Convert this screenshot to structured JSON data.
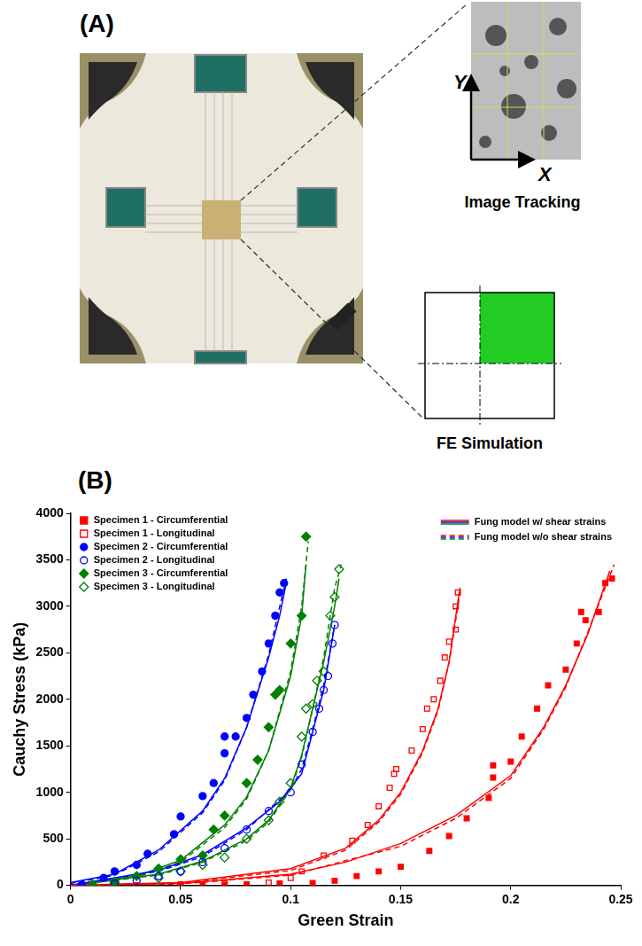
{
  "panel_a": {
    "label": "(A)",
    "image_tracking": {
      "title": "Image Tracking",
      "x_label": "X",
      "y_label": "Y"
    },
    "fe_simulation": {
      "title": "FE Simulation"
    }
  },
  "panel_b": {
    "label": "(B)"
  },
  "chart_data": {
    "type": "scatter",
    "x_label": "Green Strain",
    "y_label": "Cauchy Stress (kPa)",
    "xlim": [
      0,
      0.25
    ],
    "xticks": [
      0,
      0.05,
      0.1,
      0.15,
      0.2,
      0.25
    ],
    "ylim": [
      0,
      4000
    ],
    "yticks": [
      0,
      500,
      1000,
      1500,
      2000,
      2500,
      3000,
      3500,
      4000
    ],
    "grid": false,
    "legend": "upper left",
    "series": [
      {
        "name": "Specimen 1 - Circumferential",
        "type": "scatter",
        "marker": "filled_square",
        "color": "#ff0000",
        "x": [
          0.05,
          0.06,
          0.07,
          0.08,
          0.095,
          0.11,
          0.12,
          0.13,
          0.14,
          0.15,
          0.163,
          0.172,
          0.18,
          0.19,
          0.192,
          0.192,
          0.2,
          0.205,
          0.212,
          0.217,
          0.225,
          0.23,
          0.232,
          0.234,
          0.24,
          0.243,
          0.246
        ],
        "values": [
          0,
          0,
          5,
          10,
          20,
          25,
          50,
          100,
          150,
          200,
          370,
          530,
          720,
          940,
          1160,
          1290,
          1330,
          1600,
          1900,
          2150,
          2320,
          2600,
          2940,
          2850,
          2940,
          3250,
          3300
        ]
      },
      {
        "name": "Specimen 1 - Longitudinal",
        "type": "scatter",
        "marker": "open_square",
        "color": "#ff0000",
        "x": [
          0.03,
          0.05,
          0.07,
          0.09,
          0.1,
          0.105,
          0.115,
          0.128,
          0.135,
          0.14,
          0.145,
          0.147,
          0.148,
          0.155,
          0.16,
          0.162,
          0.165,
          0.168,
          0.17,
          0.172,
          0.175,
          0.175,
          0.176
        ],
        "values": [
          0,
          10,
          20,
          30,
          80,
          150,
          320,
          480,
          650,
          850,
          1050,
          1200,
          1250,
          1450,
          1680,
          1900,
          2000,
          2200,
          2450,
          2620,
          2750,
          3000,
          3150
        ]
      },
      {
        "name": "Specimen 2 - Circumferential",
        "type": "scatter",
        "marker": "filled_circle",
        "color": "#0000ff",
        "x": [
          0.005,
          0.015,
          0.02,
          0.03,
          0.035,
          0.047,
          0.05,
          0.06,
          0.065,
          0.07,
          0.07,
          0.075,
          0.08,
          0.083,
          0.087,
          0.09,
          0.093,
          0.095,
          0.097
        ],
        "values": [
          10,
          80,
          150,
          220,
          340,
          550,
          740,
          960,
          1100,
          1420,
          1600,
          1600,
          1800,
          2050,
          2300,
          2600,
          2900,
          3150,
          3250
        ]
      },
      {
        "name": "Specimen 2 - Longitudinal",
        "type": "scatter",
        "marker": "open_circle",
        "color": "#0000ff",
        "x": [
          0.005,
          0.02,
          0.03,
          0.04,
          0.05,
          0.06,
          0.07,
          0.08,
          0.09,
          0.1,
          0.105,
          0.11,
          0.113,
          0.115,
          0.117,
          0.119,
          0.12
        ],
        "values": [
          0,
          20,
          50,
          100,
          150,
          250,
          400,
          600,
          800,
          1000,
          1300,
          1650,
          1900,
          2100,
          2250,
          2600,
          2800
        ]
      },
      {
        "name": "Specimen 3 - Circumferential",
        "type": "scatter",
        "marker": "filled_diamond",
        "color": "#008000",
        "x": [
          0.01,
          0.02,
          0.03,
          0.04,
          0.05,
          0.06,
          0.065,
          0.07,
          0.08,
          0.085,
          0.09,
          0.093,
          0.095,
          0.1,
          0.105,
          0.107
        ],
        "values": [
          10,
          40,
          100,
          180,
          280,
          320,
          600,
          750,
          1100,
          1350,
          1700,
          2050,
          2100,
          2600,
          2900,
          3750
        ]
      },
      {
        "name": "Specimen 3 - Longitudinal",
        "type": "scatter",
        "marker": "open_diamond",
        "color": "#008000",
        "x": [
          0.02,
          0.04,
          0.05,
          0.06,
          0.07,
          0.08,
          0.09,
          0.095,
          0.1,
          0.105,
          0.107,
          0.11,
          0.112,
          0.115,
          0.118,
          0.12,
          0.122
        ],
        "values": [
          20,
          80,
          150,
          220,
          300,
          500,
          700,
          900,
          1100,
          1600,
          1900,
          1950,
          2200,
          2300,
          2900,
          3100,
          3400
        ]
      },
      {
        "name": "Fung model w/ shear strains",
        "type": "line",
        "line_style": "solid",
        "color": "#ff0000",
        "x": [
          0,
          0.05,
          0.1,
          0.125,
          0.15,
          0.175,
          0.2,
          0.215,
          0.225,
          0.235,
          0.245
        ],
        "values": [
          0,
          20,
          120,
          250,
          450,
          750,
          1180,
          1700,
          2150,
          2700,
          3380
        ]
      },
      {
        "name": "Fung model w/ shear strains",
        "type": "line",
        "line_style": "solid",
        "color": "#ff0000",
        "x": [
          0,
          0.05,
          0.1,
          0.125,
          0.14,
          0.15,
          0.16,
          0.167,
          0.172,
          0.176,
          0.177
        ],
        "values": [
          0,
          30,
          180,
          400,
          700,
          1000,
          1450,
          1900,
          2400,
          3050,
          3200
        ]
      },
      {
        "name": "Fung model w/ shear strains",
        "type": "line",
        "line_style": "solid",
        "color": "#0000ff",
        "x": [
          0,
          0.02,
          0.04,
          0.06,
          0.07,
          0.08,
          0.09,
          0.095,
          0.098
        ],
        "values": [
          30,
          120,
          380,
          800,
          1150,
          1700,
          2450,
          2900,
          3250
        ]
      },
      {
        "name": "Fung model w/ shear strains",
        "type": "line",
        "line_style": "solid",
        "color": "#0000ff",
        "x": [
          0,
          0.04,
          0.06,
          0.08,
          0.095,
          0.1,
          0.105,
          0.11,
          0.115,
          0.12
        ],
        "values": [
          0,
          160,
          330,
          620,
          900,
          1050,
          1200,
          1650,
          2100,
          2800
        ]
      },
      {
        "name": "Fung model w/ shear strains",
        "type": "line",
        "line_style": "solid",
        "color": "#008000",
        "x": [
          0,
          0.03,
          0.05,
          0.07,
          0.08,
          0.09,
          0.1,
          0.105,
          0.107
        ],
        "values": [
          0,
          100,
          270,
          650,
          950,
          1450,
          2250,
          2900,
          3450
        ]
      },
      {
        "name": "Fung model w/ shear strains",
        "type": "line",
        "line_style": "solid",
        "color": "#008000",
        "x": [
          0,
          0.04,
          0.06,
          0.08,
          0.09,
          0.1,
          0.105,
          0.11,
          0.115,
          0.12,
          0.122
        ],
        "values": [
          0,
          120,
          260,
          500,
          700,
          1050,
          1400,
          1900,
          2400,
          3000,
          3300
        ]
      },
      {
        "name": "Fung model w/o shear strains",
        "type": "line",
        "line_style": "dashed",
        "color": "#ff0000",
        "x": [
          0,
          0.05,
          0.1,
          0.15,
          0.175,
          0.2,
          0.215,
          0.225,
          0.235,
          0.247
        ],
        "values": [
          0,
          15,
          110,
          420,
          720,
          1150,
          1680,
          2130,
          2720,
          3450
        ]
      },
      {
        "name": "Fung model w/o shear strains",
        "type": "line",
        "line_style": "dashed",
        "color": "#ff0000",
        "x": [
          0,
          0.05,
          0.1,
          0.125,
          0.14,
          0.15,
          0.16,
          0.167,
          0.172,
          0.177
        ],
        "values": [
          0,
          25,
          160,
          380,
          680,
          980,
          1430,
          1880,
          2400,
          3150
        ]
      },
      {
        "name": "Fung model w/o shear strains",
        "type": "line",
        "line_style": "dashed",
        "color": "#0000ff",
        "x": [
          0,
          0.02,
          0.04,
          0.06,
          0.07,
          0.08,
          0.09,
          0.098
        ],
        "values": [
          20,
          110,
          360,
          780,
          1130,
          1700,
          2480,
          3300
        ]
      },
      {
        "name": "Fung model w/o shear strains",
        "type": "line",
        "line_style": "dashed",
        "color": "#0000ff",
        "x": [
          0,
          0.04,
          0.06,
          0.08,
          0.1,
          0.105,
          0.11,
          0.115,
          0.12
        ],
        "values": [
          0,
          150,
          310,
          600,
          1030,
          1250,
          1680,
          2150,
          2800
        ]
      },
      {
        "name": "Fung model w/o shear strains",
        "type": "line",
        "line_style": "dashed",
        "color": "#008000",
        "x": [
          0,
          0.03,
          0.05,
          0.07,
          0.08,
          0.09,
          0.1,
          0.105,
          0.108
        ],
        "values": [
          0,
          90,
          250,
          620,
          930,
          1450,
          2300,
          3000,
          3700
        ]
      },
      {
        "name": "Fung model w/o shear strains",
        "type": "line",
        "line_style": "dashed",
        "color": "#008000",
        "x": [
          0,
          0.04,
          0.06,
          0.08,
          0.09,
          0.1,
          0.105,
          0.11,
          0.115,
          0.12,
          0.123
        ],
        "values": [
          0,
          110,
          250,
          480,
          680,
          1030,
          1380,
          1900,
          2450,
          3200,
          3450
        ]
      }
    ]
  }
}
